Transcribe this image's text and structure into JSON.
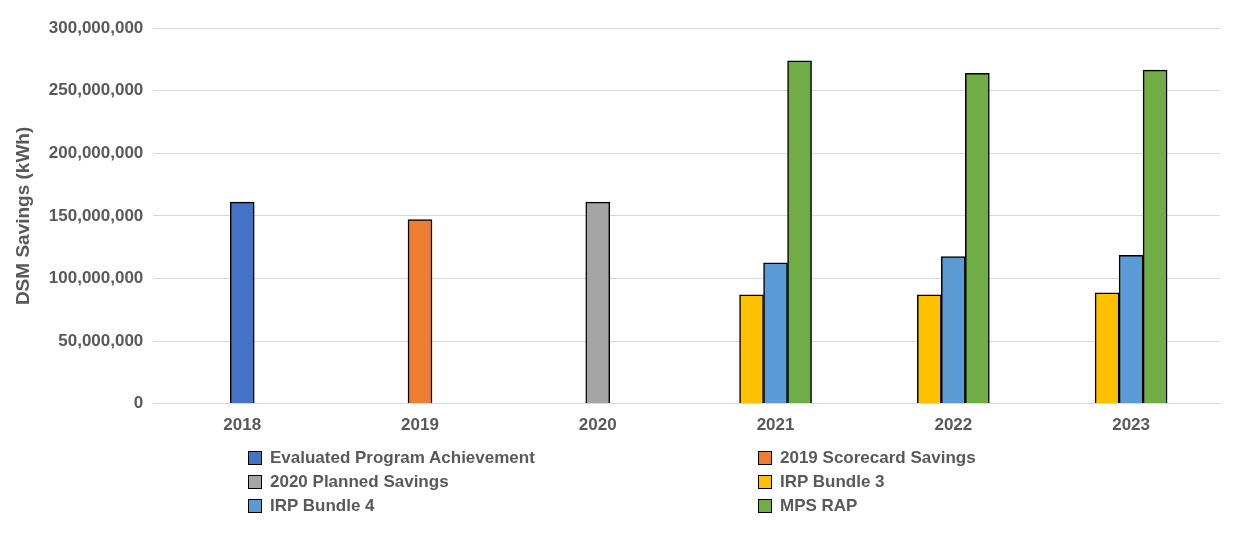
{
  "chart_data": {
    "type": "bar",
    "ylabel": "DSM Savings (kWh)",
    "categories": [
      "2018",
      "2019",
      "2020",
      "2021",
      "2022",
      "2023"
    ],
    "series": [
      {
        "name": "Evaluated Program Achievement",
        "color": "#4472c4",
        "values": [
          161000000,
          null,
          null,
          null,
          null,
          null
        ]
      },
      {
        "name": "2019 Scorecard Savings",
        "color": "#ed7d31",
        "values": [
          null,
          147000000,
          null,
          null,
          null,
          null
        ]
      },
      {
        "name": "2020 Planned Savings",
        "color": "#a5a5a5",
        "values": [
          null,
          null,
          161000000,
          null,
          null,
          null
        ]
      },
      {
        "name": "IRP Bundle 3",
        "color": "#ffc000",
        "values": [
          null,
          null,
          null,
          87000000,
          87000000,
          88500000
        ]
      },
      {
        "name": "IRP Bundle 4",
        "color": "#5b9bd5",
        "values": [
          null,
          null,
          null,
          112500000,
          117500000,
          118500000
        ]
      },
      {
        "name": "MPS RAP",
        "color": "#70ad47",
        "values": [
          null,
          null,
          null,
          274000000,
          264000000,
          266500000
        ]
      }
    ],
    "ylim": [
      0,
      300000000
    ],
    "yticks": [
      0,
      {
        "value": 50000000,
        "label": "50,000,000"
      },
      {
        "value": 100000000,
        "label": "100,000,000"
      },
      {
        "value": 150000000,
        "label": "150,000,000"
      },
      {
        "value": 200000000,
        "label": "200,000,000"
      },
      {
        "value": 250000000,
        "label": "250,000,000"
      },
      {
        "value": 300000000,
        "label": "300,000,000"
      }
    ],
    "grid": "y",
    "legend": "bottom"
  }
}
